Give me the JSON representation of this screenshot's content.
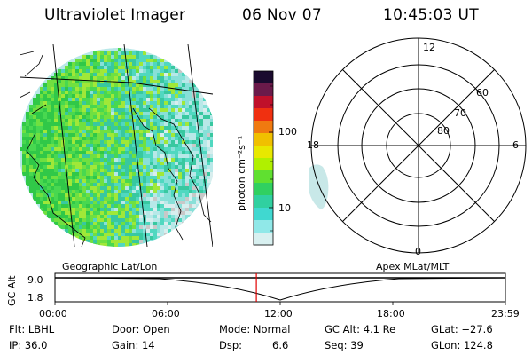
{
  "header": {
    "title": "Ultraviolet Imager",
    "date": "06 Nov 07",
    "time": "10:45:03 UT"
  },
  "colorbar": {
    "unit_label": "photon cm⁻²s⁻¹",
    "ticks": [
      "100",
      "10"
    ],
    "colors": [
      "#1a0a2e",
      "#6b1a4a",
      "#c0102a",
      "#f03010",
      "#f07a10",
      "#f0c000",
      "#e8e800",
      "#b0f000",
      "#60e030",
      "#30d060",
      "#30d0a0",
      "#40d8d0",
      "#90e8e8",
      "#d8f0f0"
    ]
  },
  "left_panel": {
    "label": "Geographic Lat/Lon"
  },
  "right_panel": {
    "label": "Apex MLat/MLT",
    "mlt_labels": [
      "12",
      "18",
      "6",
      "0"
    ],
    "mlat_labels": [
      "60",
      "70",
      "80"
    ]
  },
  "timeline": {
    "axis_label": "GC Alt",
    "y_ticks": [
      "9.0",
      "1.8"
    ],
    "x_ticks": [
      "00:00",
      "06:00",
      "12:00",
      "18:00",
      "23:59"
    ],
    "current_time_fraction": 0.447
  },
  "info": {
    "flt": "Flt: LBHL",
    "ip": "IP: 36.0",
    "door": "Door: Open",
    "gain": "Gain: 14",
    "mode": "Mode: Normal",
    "dsp_label": "Dsp:",
    "dsp_value": "6.6",
    "gc_alt": "GC Alt: 4.1 Re",
    "seq": "Seq: 39",
    "glat": "GLat: −27.6",
    "glon": "GLon: 124.8"
  }
}
